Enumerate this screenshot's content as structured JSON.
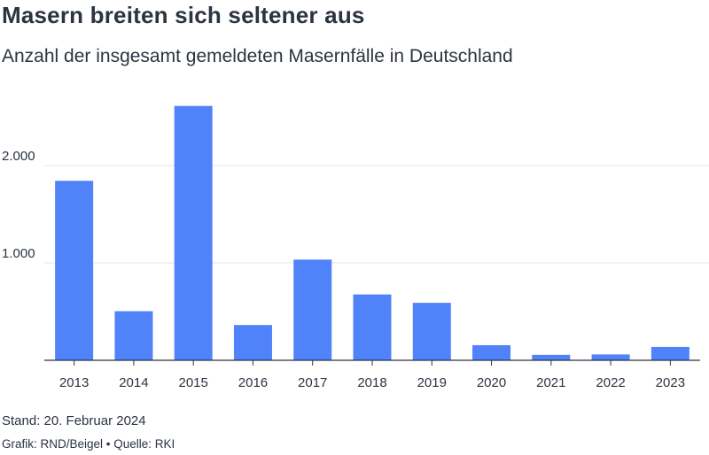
{
  "title": "Masern breiten sich seltener aus",
  "subtitle": "Anzahl der insgesamt gemeldeten Masernfälle in Deutschland",
  "footer": {
    "stand": "Stand: 20. Februar 2024",
    "credit": "Grafik: RND/Beigel • Quelle: RKI"
  },
  "colors": {
    "bar": "#5082fa",
    "grid": "#e3e6ea",
    "axis": "#2b3440",
    "text": "#2b3440"
  },
  "chart_data": {
    "type": "bar",
    "categories": [
      "2013",
      "2014",
      "2015",
      "2016",
      "2017",
      "2018",
      "2019",
      "2020",
      "2021",
      "2022",
      "2023"
    ],
    "values": [
      1843,
      504,
      2612,
      362,
      1034,
      676,
      590,
      155,
      56,
      60,
      137
    ],
    "ylim": [
      0,
      2800
    ],
    "yticks": [
      1000,
      2000
    ],
    "ytick_labels": [
      "1.000",
      "2.000"
    ],
    "grid": true,
    "xlabel": "",
    "ylabel": ""
  }
}
